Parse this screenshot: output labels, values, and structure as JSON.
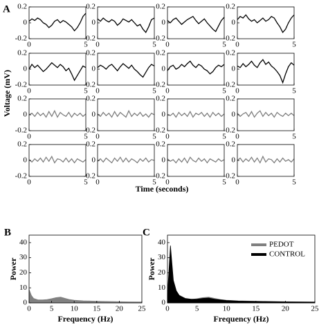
{
  "figure": {
    "panel": "A",
    "ylabel": "Voltage (mV)",
    "xlabel": "Time (seconds)"
  },
  "chart_data": [
    {
      "type": "line",
      "x": [
        0,
        0.25,
        0.5,
        0.75,
        1,
        1.25,
        1.5,
        1.75,
        2,
        2.25,
        2.5,
        2.75,
        3,
        3.25,
        3.5,
        3.75,
        4,
        4.25,
        4.5,
        4.75,
        5
      ],
      "series": [
        {
          "color": "#000000",
          "values": [
            0.02,
            0.05,
            0.03,
            0.06,
            0.04,
            0.0,
            -0.02,
            -0.06,
            -0.03,
            0.02,
            0.04,
            0.0,
            0.03,
            0.01,
            -0.02,
            -0.05,
            -0.1,
            -0.06,
            0.0,
            0.08,
            0.12
          ]
        }
      ],
      "xlim": [
        0,
        5
      ],
      "ylim": [
        -0.2,
        0.2
      ],
      "xticks": [
        0,
        5
      ],
      "yticks": [
        -0.2,
        0,
        0.2
      ]
    },
    {
      "type": "line",
      "x": [
        0,
        0.25,
        0.5,
        0.75,
        1,
        1.25,
        1.5,
        1.75,
        2,
        2.25,
        2.5,
        2.75,
        3,
        3.25,
        3.5,
        3.75,
        4,
        4.25,
        4.5,
        4.75,
        5
      ],
      "series": [
        {
          "color": "#000000",
          "values": [
            0.05,
            0.02,
            0.06,
            0.03,
            0.01,
            0.04,
            0.02,
            -0.03,
            0.0,
            0.05,
            0.03,
            0.01,
            0.04,
            0.0,
            -0.04,
            -0.02,
            -0.08,
            -0.12,
            -0.05,
            0.04,
            0.06
          ]
        }
      ],
      "xlim": [
        0,
        5
      ],
      "ylim": [
        -0.2,
        0.2
      ],
      "xticks": [
        0,
        5
      ],
      "yticks": [
        -0.2,
        0,
        0.2
      ]
    },
    {
      "type": "line",
      "x": [
        0,
        0.25,
        0.5,
        0.75,
        1,
        1.25,
        1.5,
        1.75,
        2,
        2.25,
        2.5,
        2.75,
        3,
        3.25,
        3.5,
        3.75,
        4,
        4.25,
        4.5,
        4.75,
        5
      ],
      "series": [
        {
          "color": "#000000",
          "values": [
            0.03,
            0.0,
            0.04,
            0.06,
            0.02,
            -0.02,
            0.01,
            0.04,
            0.06,
            0.08,
            0.03,
            -0.01,
            0.02,
            0.05,
            0.0,
            -0.04,
            -0.08,
            -0.11,
            -0.04,
            0.03,
            0.07
          ]
        }
      ],
      "xlim": [
        0,
        5
      ],
      "ylim": [
        -0.2,
        0.2
      ],
      "xticks": [
        0,
        5
      ],
      "yticks": [
        -0.2,
        0,
        0.2
      ]
    },
    {
      "type": "line",
      "x": [
        0,
        0.25,
        0.5,
        0.75,
        1,
        1.25,
        1.5,
        1.75,
        2,
        2.25,
        2.5,
        2.75,
        3,
        3.25,
        3.5,
        3.75,
        4,
        4.25,
        4.5,
        4.75,
        5
      ],
      "series": [
        {
          "color": "#000000",
          "values": [
            0.04,
            0.08,
            0.06,
            0.1,
            0.05,
            0.02,
            0.04,
            0.0,
            0.03,
            0.06,
            0.02,
            0.04,
            0.08,
            0.06,
            0.0,
            -0.05,
            -0.12,
            -0.08,
            0.0,
            0.06,
            0.1
          ]
        }
      ],
      "xlim": [
        0,
        5
      ],
      "ylim": [
        -0.2,
        0.2
      ],
      "xticks": [
        0,
        5
      ],
      "yticks": [
        -0.2,
        0,
        0.2
      ]
    },
    {
      "type": "line",
      "x": [
        0,
        0.25,
        0.5,
        0.75,
        1,
        1.25,
        1.5,
        1.75,
        2,
        2.25,
        2.5,
        2.75,
        3,
        3.25,
        3.5,
        3.75,
        4,
        4.25,
        4.5,
        4.75,
        5
      ],
      "series": [
        {
          "color": "#000000",
          "values": [
            0.0,
            0.06,
            0.02,
            0.05,
            0.01,
            -0.03,
            0.0,
            0.04,
            0.08,
            0.05,
            0.02,
            0.06,
            0.03,
            -0.02,
            0.01,
            -0.06,
            -0.14,
            -0.08,
            -0.02,
            0.04,
            0.02
          ]
        }
      ],
      "xlim": [
        0,
        5
      ],
      "ylim": [
        -0.2,
        0.2
      ],
      "xticks": [
        0,
        5
      ],
      "yticks": [
        -0.2,
        0,
        0.2
      ]
    },
    {
      "type": "line",
      "x": [
        0,
        0.25,
        0.5,
        0.75,
        1,
        1.25,
        1.5,
        1.75,
        2,
        2.25,
        2.5,
        2.75,
        3,
        3.25,
        3.5,
        3.75,
        4,
        4.25,
        4.5,
        4.75,
        5
      ],
      "series": [
        {
          "color": "#000000",
          "values": [
            0.02,
            0.05,
            0.03,
            0.0,
            0.04,
            0.06,
            0.02,
            -0.02,
            0.03,
            0.07,
            0.04,
            0.01,
            0.05,
            0.0,
            -0.03,
            -0.07,
            -0.1,
            -0.04,
            0.02,
            0.06,
            0.04
          ]
        }
      ],
      "xlim": [
        0,
        5
      ],
      "ylim": [
        -0.2,
        0.2
      ],
      "xticks": [
        0,
        5
      ],
      "yticks": [
        -0.2,
        0,
        0.2
      ]
    },
    {
      "type": "line",
      "x": [
        0,
        0.25,
        0.5,
        0.75,
        1,
        1.25,
        1.5,
        1.75,
        2,
        2.25,
        2.5,
        2.75,
        3,
        3.25,
        3.5,
        3.75,
        4,
        4.25,
        4.5,
        4.75,
        5
      ],
      "series": [
        {
          "color": "#000000",
          "values": [
            -0.02,
            0.03,
            0.05,
            0.0,
            0.02,
            0.06,
            0.03,
            0.07,
            0.1,
            0.05,
            0.02,
            0.06,
            0.04,
            0.0,
            -0.02,
            -0.06,
            -0.03,
            0.02,
            0.05,
            0.03,
            0.06
          ]
        }
      ],
      "xlim": [
        0,
        5
      ],
      "ylim": [
        -0.2,
        0.2
      ],
      "xticks": [
        0,
        5
      ],
      "yticks": [
        -0.2,
        0,
        0.2
      ]
    },
    {
      "type": "line",
      "x": [
        0,
        0.25,
        0.5,
        0.75,
        1,
        1.25,
        1.5,
        1.75,
        2,
        2.25,
        2.5,
        2.75,
        3,
        3.25,
        3.5,
        3.75,
        4,
        4.25,
        4.5,
        4.75,
        5
      ],
      "series": [
        {
          "color": "#000000",
          "values": [
            0.04,
            0.02,
            0.07,
            0.03,
            0.06,
            0.1,
            0.05,
            0.02,
            0.08,
            0.12,
            0.06,
            0.09,
            0.04,
            0.01,
            -0.03,
            -0.08,
            -0.17,
            -0.06,
            0.03,
            0.08,
            0.05
          ]
        }
      ],
      "xlim": [
        0,
        5
      ],
      "ylim": [
        -0.2,
        0.2
      ],
      "xticks": [
        0,
        5
      ],
      "yticks": [
        -0.2,
        0,
        0.2
      ]
    },
    {
      "type": "line",
      "x": [
        0,
        0.25,
        0.5,
        0.75,
        1,
        1.25,
        1.5,
        1.75,
        2,
        2.25,
        2.5,
        2.75,
        3,
        3.25,
        3.5,
        3.75,
        4,
        4.25,
        4.5,
        4.75,
        5
      ],
      "series": [
        {
          "color": "#808080",
          "values": [
            0.0,
            0.02,
            -0.02,
            0.03,
            -0.01,
            0.02,
            -0.03,
            0.04,
            -0.02,
            0.05,
            -0.03,
            0.03,
            0.0,
            -0.02,
            0.03,
            -0.03,
            0.02,
            -0.01,
            0.02,
            -0.02,
            0.01
          ]
        }
      ],
      "xlim": [
        0,
        5
      ],
      "ylim": [
        -0.2,
        0.2
      ],
      "xticks": [
        0,
        5
      ],
      "yticks": [
        -0.2,
        0,
        0.2
      ]
    },
    {
      "type": "line",
      "x": [
        0,
        0.25,
        0.5,
        0.75,
        1,
        1.25,
        1.5,
        1.75,
        2,
        2.25,
        2.5,
        2.75,
        3,
        3.25,
        3.5,
        3.75,
        4,
        4.25,
        4.5,
        4.75,
        5
      ],
      "series": [
        {
          "color": "#808080",
          "values": [
            0.01,
            -0.02,
            0.03,
            -0.01,
            0.02,
            -0.03,
            0.04,
            -0.02,
            0.03,
            0.0,
            -0.03,
            0.05,
            -0.02,
            0.02,
            -0.01,
            0.03,
            -0.02,
            0.01,
            -0.03,
            0.02,
            0.0
          ]
        }
      ],
      "xlim": [
        0,
        5
      ],
      "ylim": [
        -0.2,
        0.2
      ],
      "xticks": [
        0,
        5
      ],
      "yticks": [
        -0.2,
        0,
        0.2
      ]
    },
    {
      "type": "line",
      "x": [
        0,
        0.25,
        0.5,
        0.75,
        1,
        1.25,
        1.5,
        1.75,
        2,
        2.25,
        2.5,
        2.75,
        3,
        3.25,
        3.5,
        3.75,
        4,
        4.25,
        4.5,
        4.75,
        5
      ],
      "series": [
        {
          "color": "#808080",
          "values": [
            0.0,
            -0.01,
            0.02,
            -0.03,
            0.03,
            -0.01,
            0.02,
            -0.02,
            0.04,
            -0.03,
            0.02,
            0.0,
            0.03,
            -0.02,
            0.02,
            -0.03,
            0.03,
            -0.01,
            0.02,
            -0.02,
            0.01
          ]
        }
      ],
      "xlim": [
        0,
        5
      ],
      "ylim": [
        -0.2,
        0.2
      ],
      "xticks": [
        0,
        5
      ],
      "yticks": [
        -0.2,
        0,
        0.2
      ]
    },
    {
      "type": "line",
      "x": [
        0,
        0.25,
        0.5,
        0.75,
        1,
        1.25,
        1.5,
        1.75,
        2,
        2.25,
        2.5,
        2.75,
        3,
        3.25,
        3.5,
        3.75,
        4,
        4.25,
        4.5,
        4.75,
        5
      ],
      "series": [
        {
          "color": "#808080",
          "values": [
            0.02,
            -0.02,
            0.01,
            0.03,
            -0.02,
            0.04,
            -0.03,
            0.02,
            0.05,
            -0.02,
            0.03,
            -0.01,
            0.02,
            -0.03,
            0.03,
            0.0,
            -0.02,
            0.02,
            -0.01,
            0.02,
            -0.01
          ]
        }
      ],
      "xlim": [
        0,
        5
      ],
      "ylim": [
        -0.2,
        0.2
      ],
      "xticks": [
        0,
        5
      ],
      "yticks": [
        -0.2,
        0,
        0.2
      ]
    },
    {
      "type": "line",
      "x": [
        0,
        0.25,
        0.5,
        0.75,
        1,
        1.25,
        1.5,
        1.75,
        2,
        2.25,
        2.5,
        2.75,
        3,
        3.25,
        3.5,
        3.75,
        4,
        4.25,
        4.5,
        4.75,
        5
      ],
      "series": [
        {
          "color": "#808080",
          "values": [
            0.01,
            -0.02,
            0.02,
            -0.01,
            0.03,
            -0.02,
            0.04,
            -0.01,
            0.05,
            -0.03,
            0.02,
            0.01,
            -0.02,
            0.03,
            -0.02,
            0.02,
            -0.03,
            0.02,
            0.0,
            -0.02,
            0.01
          ]
        }
      ],
      "xlim": [
        0,
        5
      ],
      "ylim": [
        -0.2,
        0.2
      ],
      "xticks": [
        0,
        5
      ],
      "yticks": [
        -0.2,
        0,
        0.2
      ]
    },
    {
      "type": "line",
      "x": [
        0,
        0.25,
        0.5,
        0.75,
        1,
        1.25,
        1.5,
        1.75,
        2,
        2.25,
        2.5,
        2.75,
        3,
        3.25,
        3.5,
        3.75,
        4,
        4.25,
        4.5,
        4.75,
        5
      ],
      "series": [
        {
          "color": "#808080",
          "values": [
            -0.01,
            0.02,
            -0.02,
            0.03,
            0.0,
            -0.03,
            0.03,
            -0.01,
            0.04,
            -0.02,
            0.03,
            -0.02,
            0.02,
            0.0,
            -0.03,
            0.02,
            -0.01,
            0.03,
            -0.02,
            0.01,
            0.0
          ]
        }
      ],
      "xlim": [
        0,
        5
      ],
      "ylim": [
        -0.2,
        0.2
      ],
      "xticks": [
        0,
        5
      ],
      "yticks": [
        -0.2,
        0,
        0.2
      ]
    },
    {
      "type": "line",
      "x": [
        0,
        0.25,
        0.5,
        0.75,
        1,
        1.25,
        1.5,
        1.75,
        2,
        2.25,
        2.5,
        2.75,
        3,
        3.25,
        3.5,
        3.75,
        4,
        4.25,
        4.5,
        4.75,
        5
      ],
      "series": [
        {
          "color": "#808080",
          "values": [
            0.02,
            -0.01,
            0.01,
            -0.03,
            0.02,
            -0.02,
            0.03,
            -0.03,
            0.04,
            0.0,
            -0.02,
            0.03,
            -0.01,
            0.02,
            -0.03,
            0.02,
            0.0,
            -0.02,
            0.02,
            -0.01,
            0.01
          ]
        }
      ],
      "xlim": [
        0,
        5
      ],
      "ylim": [
        -0.2,
        0.2
      ],
      "xticks": [
        0,
        5
      ],
      "yticks": [
        -0.2,
        0,
        0.2
      ]
    },
    {
      "type": "line",
      "x": [
        0,
        0.25,
        0.5,
        0.75,
        1,
        1.25,
        1.5,
        1.75,
        2,
        2.25,
        2.5,
        2.75,
        3,
        3.25,
        3.5,
        3.75,
        4,
        4.25,
        4.5,
        4.75,
        5
      ],
      "series": [
        {
          "color": "#808080",
          "values": [
            0.0,
            0.03,
            -0.02,
            0.02,
            -0.01,
            0.04,
            -0.02,
            0.03,
            -0.03,
            0.05,
            -0.02,
            0.02,
            0.01,
            -0.03,
            0.02,
            -0.02,
            0.03,
            -0.01,
            0.01,
            -0.02,
            0.02
          ]
        }
      ],
      "xlim": [
        0,
        5
      ],
      "ylim": [
        -0.2,
        0.2
      ],
      "xticks": [
        0,
        5
      ],
      "yticks": [
        -0.2,
        0,
        0.2
      ]
    },
    {
      "type": "area",
      "panel": "B",
      "xlabel": "Frequency (Hz)",
      "ylabel": "Power",
      "x": [
        0,
        0.5,
        1,
        1.5,
        2,
        3,
        4,
        5,
        6,
        7,
        8,
        9,
        10,
        12,
        14,
        16,
        18,
        20,
        22,
        25
      ],
      "series": [
        {
          "color": "#808080",
          "values": [
            9,
            5,
            3,
            2.5,
            2,
            2,
            2.2,
            2.8,
            3.5,
            3.8,
            3,
            2.2,
            1.8,
            1.4,
            1.2,
            1,
            0.9,
            0.8,
            0.7,
            0.6
          ]
        }
      ],
      "xlim": [
        0,
        25
      ],
      "ylim": [
        0,
        45
      ],
      "xticks": [
        0,
        5,
        10,
        15,
        20,
        25
      ],
      "yticks": [
        0,
        10,
        20,
        30,
        40
      ]
    },
    {
      "type": "area",
      "panel": "C",
      "xlabel": "Frequency (Hz)",
      "ylabel": "Power",
      "x": [
        0,
        0.5,
        1,
        1.5,
        2,
        3,
        4,
        5,
        6,
        7,
        8,
        9,
        10,
        12,
        14,
        16,
        18,
        20,
        22,
        25
      ],
      "series": [
        {
          "name": "PEDOT",
          "color": "#808080",
          "values": [
            9,
            5,
            3,
            2.5,
            2,
            2,
            2.2,
            2.8,
            3.5,
            3.8,
            3,
            2.2,
            1.8,
            1.4,
            1.2,
            1,
            0.9,
            0.8,
            0.7,
            0.6
          ]
        },
        {
          "name": "CONTROL",
          "color": "#000000",
          "values": [
            5,
            38,
            15,
            8,
            5,
            3,
            2.5,
            2.5,
            3,
            3.2,
            2.5,
            2,
            1.6,
            1.2,
            1,
            0.9,
            0.8,
            0.7,
            0.6,
            0.5
          ]
        }
      ],
      "xlim": [
        0,
        25
      ],
      "ylim": [
        0,
        45
      ],
      "xticks": [
        0,
        5,
        10,
        15,
        20,
        25
      ],
      "yticks": [
        0,
        10,
        20,
        30,
        40
      ],
      "legend": "upper right"
    }
  ]
}
